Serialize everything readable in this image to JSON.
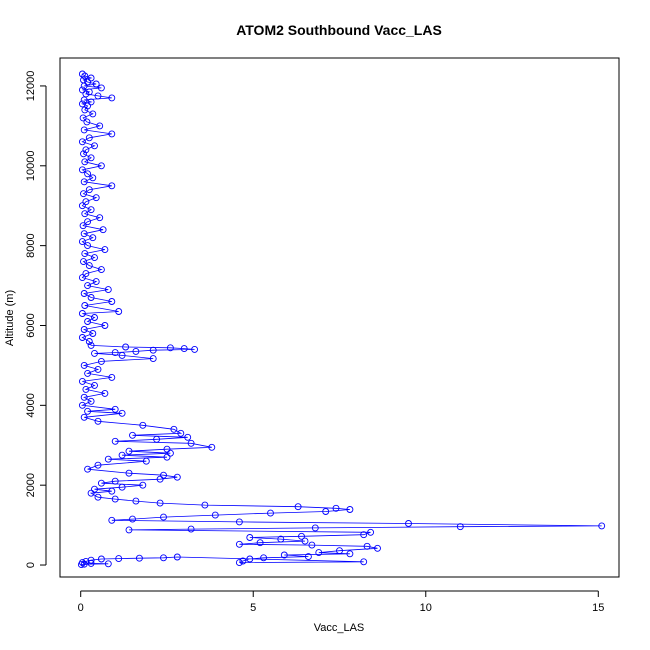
{
  "chart_data": {
    "type": "scatter",
    "title": "ATOM2 Southbound Vacc_LAS",
    "xlabel": "Vacc_LAS",
    "ylabel": "Altitude (m)",
    "xlim": [
      -0.6,
      15.6
    ],
    "ylim": [
      -300,
      12700
    ],
    "x_ticks": [
      0,
      5,
      10,
      15
    ],
    "y_ticks": [
      0,
      2000,
      4000,
      6000,
      8000,
      10000,
      12000
    ],
    "x_tick_labels": [
      "0",
      "5",
      "10",
      "15"
    ],
    "y_tick_labels": [
      "0",
      "2000",
      "4000",
      "6000",
      "8000",
      "10000",
      "12000"
    ],
    "series_color": "#0000ff",
    "marker": "open-circle",
    "connected": true,
    "grid": false,
    "series": [
      {
        "points": [
          [
            0.05,
            12300
          ],
          [
            0.12,
            12250
          ],
          [
            0.3,
            12200
          ],
          [
            0.08,
            12150
          ],
          [
            0.2,
            12100
          ],
          [
            0.45,
            12050
          ],
          [
            0.1,
            12000
          ],
          [
            0.6,
            11950
          ],
          [
            0.05,
            11900
          ],
          [
            0.25,
            11850
          ],
          [
            0.15,
            11800
          ],
          [
            0.5,
            11750
          ],
          [
            0.9,
            11700
          ],
          [
            0.1,
            11650
          ],
          [
            0.3,
            11600
          ],
          [
            0.05,
            11550
          ],
          [
            0.2,
            11500
          ],
          [
            0.12,
            11400
          ],
          [
            0.35,
            11300
          ],
          [
            0.07,
            11200
          ],
          [
            0.18,
            11100
          ],
          [
            0.55,
            11000
          ],
          [
            0.1,
            10900
          ],
          [
            0.9,
            10800
          ],
          [
            0.25,
            10700
          ],
          [
            0.05,
            10600
          ],
          [
            0.4,
            10500
          ],
          [
            0.15,
            10400
          ],
          [
            0.08,
            10300
          ],
          [
            0.3,
            10200
          ],
          [
            0.12,
            10100
          ],
          [
            0.6,
            10000
          ],
          [
            0.05,
            9900
          ],
          [
            0.2,
            9800
          ],
          [
            0.35,
            9700
          ],
          [
            0.1,
            9600
          ],
          [
            0.9,
            9500
          ],
          [
            0.25,
            9400
          ],
          [
            0.08,
            9300
          ],
          [
            0.45,
            9200
          ],
          [
            0.15,
            9100
          ],
          [
            0.05,
            9000
          ],
          [
            0.3,
            8900
          ],
          [
            0.12,
            8800
          ],
          [
            0.55,
            8700
          ],
          [
            0.2,
            8600
          ],
          [
            0.07,
            8500
          ],
          [
            0.65,
            8400
          ],
          [
            0.1,
            8300
          ],
          [
            0.35,
            8200
          ],
          [
            0.05,
            8100
          ],
          [
            0.2,
            8000
          ],
          [
            0.7,
            7900
          ],
          [
            0.12,
            7800
          ],
          [
            0.4,
            7700
          ],
          [
            0.08,
            7600
          ],
          [
            0.25,
            7500
          ],
          [
            0.6,
            7400
          ],
          [
            0.15,
            7300
          ],
          [
            0.05,
            7200
          ],
          [
            0.45,
            7100
          ],
          [
            0.2,
            7000
          ],
          [
            0.8,
            6900
          ],
          [
            0.1,
            6800
          ],
          [
            0.3,
            6700
          ],
          [
            0.9,
            6600
          ],
          [
            0.12,
            6500
          ],
          [
            1.1,
            6350
          ],
          [
            0.05,
            6300
          ],
          [
            0.4,
            6200
          ],
          [
            0.2,
            6100
          ],
          [
            0.7,
            6000
          ],
          [
            0.1,
            5900
          ],
          [
            0.35,
            5800
          ],
          [
            0.05,
            5700
          ],
          [
            0.25,
            5600
          ],
          [
            0.3,
            5500
          ],
          [
            1.3,
            5460
          ],
          [
            2.6,
            5440
          ],
          [
            3.0,
            5420
          ],
          [
            3.3,
            5400
          ],
          [
            2.1,
            5380
          ],
          [
            1.6,
            5350
          ],
          [
            1.0,
            5320
          ],
          [
            0.4,
            5300
          ],
          [
            1.2,
            5250
          ],
          [
            2.1,
            5170
          ],
          [
            0.6,
            5100
          ],
          [
            0.1,
            5000
          ],
          [
            0.5,
            4900
          ],
          [
            0.2,
            4800
          ],
          [
            0.9,
            4700
          ],
          [
            0.05,
            4600
          ],
          [
            0.4,
            4500
          ],
          [
            0.15,
            4400
          ],
          [
            0.7,
            4300
          ],
          [
            0.1,
            4200
          ],
          [
            0.3,
            4100
          ],
          [
            0.05,
            4000
          ],
          [
            1.0,
            3900
          ],
          [
            0.2,
            3850
          ],
          [
            1.2,
            3800
          ],
          [
            0.1,
            3700
          ],
          [
            0.5,
            3600
          ],
          [
            1.8,
            3500
          ],
          [
            2.7,
            3400
          ],
          [
            2.9,
            3300
          ],
          [
            1.5,
            3250
          ],
          [
            3.1,
            3200
          ],
          [
            2.2,
            3150
          ],
          [
            1.0,
            3100
          ],
          [
            3.2,
            3050
          ],
          [
            3.8,
            2950
          ],
          [
            2.5,
            2900
          ],
          [
            1.4,
            2850
          ],
          [
            2.6,
            2800
          ],
          [
            1.2,
            2750
          ],
          [
            2.5,
            2700
          ],
          [
            0.8,
            2650
          ],
          [
            1.9,
            2600
          ],
          [
            0.5,
            2500
          ],
          [
            0.2,
            2400
          ],
          [
            1.4,
            2300
          ],
          [
            2.4,
            2250
          ],
          [
            2.8,
            2200
          ],
          [
            2.3,
            2150
          ],
          [
            1.0,
            2100
          ],
          [
            0.6,
            2050
          ],
          [
            1.8,
            2000
          ],
          [
            1.2,
            1950
          ],
          [
            0.4,
            1900
          ],
          [
            0.9,
            1850
          ],
          [
            0.3,
            1800
          ],
          [
            0.5,
            1700
          ],
          [
            1.0,
            1650
          ],
          [
            1.6,
            1600
          ],
          [
            2.3,
            1550
          ],
          [
            3.6,
            1500
          ],
          [
            6.3,
            1460
          ],
          [
            7.4,
            1420
          ],
          [
            7.8,
            1390
          ],
          [
            7.1,
            1340
          ],
          [
            5.5,
            1300
          ],
          [
            3.9,
            1250
          ],
          [
            2.4,
            1200
          ],
          [
            1.5,
            1150
          ],
          [
            0.9,
            1120
          ],
          [
            4.6,
            1080
          ],
          [
            9.5,
            1040
          ],
          [
            15.1,
            980
          ],
          [
            11.0,
            960
          ],
          [
            6.8,
            930
          ],
          [
            3.2,
            900
          ],
          [
            1.4,
            880
          ],
          [
            8.4,
            820
          ],
          [
            8.2,
            760
          ],
          [
            6.4,
            720
          ],
          [
            4.9,
            690
          ],
          [
            5.8,
            650
          ],
          [
            6.5,
            600
          ],
          [
            5.2,
            560
          ],
          [
            4.6,
            520
          ],
          [
            6.7,
            500
          ],
          [
            8.3,
            470
          ],
          [
            8.6,
            420
          ],
          [
            7.5,
            360
          ],
          [
            6.9,
            310
          ],
          [
            7.8,
            280
          ],
          [
            5.9,
            250
          ],
          [
            6.6,
            210
          ],
          [
            5.3,
            180
          ],
          [
            4.9,
            150
          ],
          [
            4.7,
            100
          ],
          [
            4.6,
            60
          ],
          [
            8.2,
            80
          ],
          [
            2.8,
            200
          ],
          [
            2.4,
            180
          ],
          [
            1.7,
            170
          ],
          [
            1.1,
            160
          ],
          [
            0.6,
            150
          ],
          [
            0.3,
            120
          ],
          [
            0.15,
            90
          ],
          [
            0.05,
            60
          ],
          [
            0.3,
            40
          ],
          [
            0.8,
            30
          ],
          [
            0.1,
            20
          ],
          [
            0.02,
            10
          ]
        ]
      }
    ]
  }
}
